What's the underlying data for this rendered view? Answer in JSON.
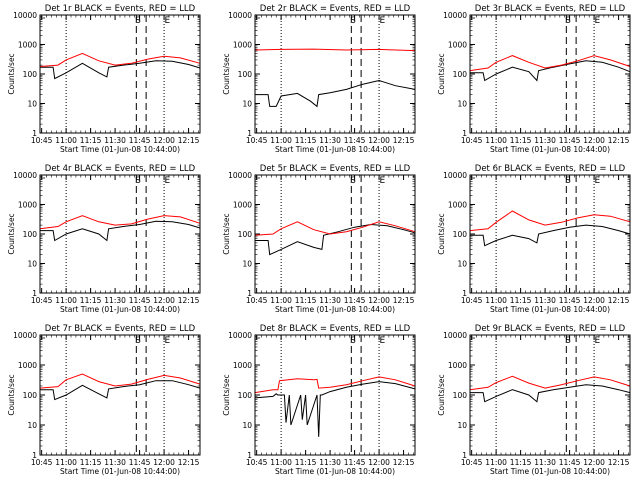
{
  "colors": {
    "events": "#000000",
    "lld": "#ff0000"
  },
  "chart_data": {
    "type": "line",
    "grid": "off",
    "xlabel": "Start Time (01-Jun-08 10:44:00)",
    "ylabel": "Counts/sec",
    "y_scale": "log",
    "ylim": [
      1,
      10000
    ],
    "y_ticks": [
      "1",
      "10",
      "100",
      "1000",
      "10000"
    ],
    "x_ticks": [
      "10:45",
      "11:00",
      "11:15",
      "11:30",
      "11:45",
      "12:00",
      "12:15"
    ],
    "x_tick_minutes": [
      45,
      60,
      75,
      90,
      105,
      120,
      135
    ],
    "xlim": [
      "10:44",
      "12:22"
    ],
    "dotted_lines": [
      "11:00",
      "12:00"
    ],
    "dashed_lines": [
      "11:43",
      "11:49"
    ],
    "markers": [
      {
        "label": "S",
        "time": "11:44"
      },
      {
        "label": "E",
        "time": "12:02"
      }
    ],
    "panels": [
      {
        "title": "Det 1r BLACK = Events, RED = LLD",
        "series": [
          {
            "name": "Events",
            "x": [
              "10:44",
              "10:52",
              "10:53",
              "11:00",
              "11:10",
              "11:20",
              "11:25",
              "11:26",
              "11:35",
              "11:45",
              "11:55",
              "12:05",
              "12:15",
              "12:22"
            ],
            "y": [
              170,
              170,
              70,
              110,
              230,
              110,
              80,
              170,
              200,
              230,
              280,
              270,
              210,
              160
            ]
          },
          {
            "name": "LLD",
            "x": [
              "10:44",
              "10:55",
              "11:00",
              "11:10",
              "11:20",
              "11:30",
              "11:40",
              "11:50",
              "12:00",
              "12:10",
              "12:22"
            ],
            "y": [
              180,
              200,
              300,
              500,
              280,
              200,
              230,
              320,
              400,
              350,
              230
            ]
          }
        ]
      },
      {
        "title": "Det 2r BLACK = Events, RED = LLD",
        "series": [
          {
            "name": "Events",
            "x": [
              "10:44",
              "10:52",
              "10:53",
              "10:57",
              "11:00",
              "11:10",
              "11:18",
              "11:22",
              "11:23",
              "11:30",
              "11:40",
              "11:50",
              "12:00",
              "12:10",
              "12:22"
            ],
            "y": [
              20,
              20,
              8,
              8,
              18,
              22,
              12,
              8,
              20,
              23,
              30,
              45,
              60,
              40,
              30
            ]
          },
          {
            "name": "LLD",
            "x": [
              "10:44",
              "11:00",
              "11:20",
              "11:40",
              "12:00",
              "12:22"
            ],
            "y": [
              650,
              680,
              700,
              650,
              680,
              620
            ]
          }
        ]
      },
      {
        "title": "Det 3r BLACK = Events, RED = LLD",
        "series": [
          {
            "name": "Events",
            "x": [
              "10:44",
              "10:52",
              "10:53",
              "11:00",
              "11:10",
              "11:20",
              "11:25",
              "11:26",
              "11:35",
              "11:45",
              "11:55",
              "12:05",
              "12:15",
              "12:22"
            ],
            "y": [
              110,
              110,
              60,
              100,
              170,
              120,
              60,
              130,
              170,
              220,
              280,
              250,
              170,
              120
            ]
          },
          {
            "name": "LLD",
            "x": [
              "10:44",
              "10:55",
              "11:00",
              "11:10",
              "11:20",
              "11:30",
              "11:40",
              "11:50",
              "12:00",
              "12:10",
              "12:22"
            ],
            "y": [
              130,
              160,
              250,
              420,
              250,
              160,
              200,
              280,
              420,
              300,
              180
            ]
          }
        ]
      },
      {
        "title": "Det 4r BLACK = Events, RED = LLD",
        "series": [
          {
            "name": "Events",
            "x": [
              "10:44",
              "10:52",
              "10:53",
              "11:00",
              "11:10",
              "11:20",
              "11:25",
              "11:26",
              "11:35",
              "11:45",
              "11:55",
              "12:05",
              "12:15",
              "12:22"
            ],
            "y": [
              130,
              130,
              60,
              100,
              150,
              100,
              60,
              150,
              180,
              210,
              270,
              260,
              210,
              160
            ]
          },
          {
            "name": "LLD",
            "x": [
              "10:44",
              "10:55",
              "11:00",
              "11:10",
              "11:20",
              "11:30",
              "11:40",
              "11:50",
              "12:00",
              "12:10",
              "12:22"
            ],
            "y": [
              150,
              180,
              260,
              420,
              260,
              200,
              220,
              320,
              420,
              380,
              230
            ]
          }
        ]
      },
      {
        "title": "Det 5r BLACK = Events, RED = LLD",
        "series": [
          {
            "name": "Events",
            "x": [
              "10:44",
              "10:52",
              "10:53",
              "11:00",
              "11:10",
              "11:20",
              "11:25",
              "11:26",
              "11:35",
              "11:45",
              "11:55",
              "12:05",
              "12:15",
              "12:22"
            ],
            "y": [
              60,
              60,
              20,
              30,
              55,
              35,
              30,
              90,
              120,
              170,
              210,
              190,
              140,
              110
            ]
          },
          {
            "name": "LLD",
            "x": [
              "10:44",
              "10:55",
              "11:00",
              "11:10",
              "11:20",
              "11:30",
              "11:40",
              "11:50",
              "12:00",
              "12:10",
              "12:22"
            ],
            "y": [
              90,
              100,
              150,
              260,
              140,
              100,
              120,
              170,
              260,
              190,
              120
            ]
          }
        ]
      },
      {
        "title": "Det 6r BLACK = Events, RED = LLD",
        "series": [
          {
            "name": "Events",
            "x": [
              "10:44",
              "10:52",
              "10:53",
              "11:00",
              "11:10",
              "11:20",
              "11:25",
              "11:26",
              "11:35",
              "11:45",
              "11:55",
              "12:05",
              "12:15",
              "12:22"
            ],
            "y": [
              90,
              90,
              40,
              60,
              90,
              70,
              50,
              100,
              130,
              170,
              200,
              180,
              130,
              100
            ]
          },
          {
            "name": "LLD",
            "x": [
              "10:44",
              "10:55",
              "11:00",
              "11:10",
              "11:20",
              "11:30",
              "11:40",
              "11:50",
              "12:00",
              "12:10",
              "12:22"
            ],
            "y": [
              130,
              150,
              250,
              600,
              300,
              200,
              250,
              350,
              450,
              400,
              260
            ]
          }
        ]
      },
      {
        "title": "Det 7r BLACK = Events, RED = LLD",
        "series": [
          {
            "name": "Events",
            "x": [
              "10:44",
              "10:52",
              "10:53",
              "11:00",
              "11:10",
              "11:20",
              "11:25",
              "11:26",
              "11:35",
              "11:45",
              "11:55",
              "12:05",
              "12:15",
              "12:22"
            ],
            "y": [
              150,
              150,
              70,
              100,
              210,
              110,
              80,
              160,
              190,
              220,
              300,
              300,
              220,
              170
            ]
          },
          {
            "name": "LLD",
            "x": [
              "10:44",
              "10:55",
              "11:00",
              "11:10",
              "11:20",
              "11:30",
              "11:40",
              "11:50",
              "12:00",
              "12:10",
              "12:22"
            ],
            "y": [
              170,
              190,
              320,
              500,
              280,
              200,
              230,
              330,
              450,
              370,
              230
            ]
          }
        ]
      },
      {
        "title": "Det 8r BLACK = Events, RED = LLD",
        "series": [
          {
            "name": "Events",
            "x": [
              "10:44",
              "10:55",
              "10:57",
              "10:58",
              "11:02",
              "11:03",
              "11:05",
              "11:06",
              "11:12",
              "11:13",
              "11:15",
              "11:16",
              "11:22",
              "11:23",
              "11:24",
              "11:25",
              "11:30",
              "11:40",
              "11:50",
              "12:00",
              "12:10",
              "12:22"
            ],
            "y": [
              80,
              90,
              110,
              100,
              100,
              12,
              100,
              10,
              100,
              15,
              100,
              10,
              100,
              4,
              100,
              100,
              130,
              180,
              230,
              280,
              240,
              160
            ]
          },
          {
            "name": "LLD",
            "x": [
              "10:44",
              "10:55",
              "10:58",
              "10:59",
              "11:10",
              "11:20",
              "11:22",
              "11:23",
              "11:30",
              "11:40",
              "11:50",
              "12:00",
              "12:10",
              "12:22"
            ],
            "y": [
              120,
              150,
              150,
              300,
              350,
              320,
              330,
              170,
              180,
              220,
              300,
              400,
              320,
              200
            ]
          }
        ]
      },
      {
        "title": "Det 9r BLACK = Events, RED = LLD",
        "series": [
          {
            "name": "Events",
            "x": [
              "10:44",
              "10:52",
              "10:53",
              "11:00",
              "11:10",
              "11:20",
              "11:25",
              "11:26",
              "11:35",
              "11:45",
              "11:55",
              "12:05",
              "12:15",
              "12:22"
            ],
            "y": [
              120,
              120,
              60,
              90,
              150,
              100,
              60,
              120,
              150,
              180,
              220,
              200,
              150,
              120
            ]
          },
          {
            "name": "LLD",
            "x": [
              "10:44",
              "10:55",
              "11:00",
              "11:10",
              "11:20",
              "11:30",
              "11:40",
              "11:50",
              "12:00",
              "12:10",
              "12:22"
            ],
            "y": [
              150,
              180,
              260,
              420,
              250,
              170,
              220,
              300,
              400,
              320,
              200
            ]
          }
        ]
      }
    ]
  }
}
